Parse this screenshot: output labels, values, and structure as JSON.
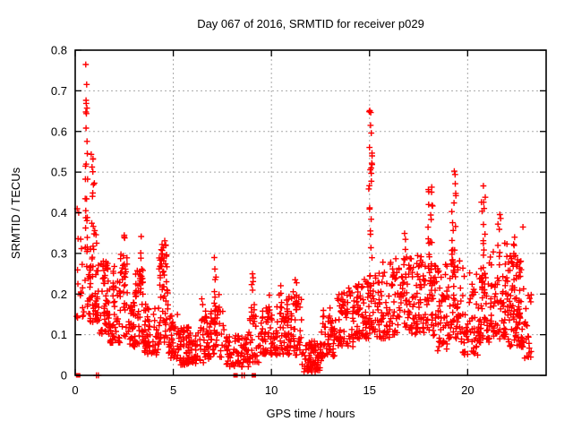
{
  "chart_data": {
    "type": "scatter",
    "title": "Day 067 of 2016, SRMTID for receiver p029",
    "xlabel": "GPS time / hours",
    "ylabel": "SRMTID / TECUs",
    "xlim": [
      0,
      24
    ],
    "ylim": [
      0,
      0.8
    ],
    "xticks": [
      0,
      5,
      10,
      15,
      20
    ],
    "yticks": [
      0,
      0.1,
      0.2,
      0.3,
      0.4,
      0.5,
      0.6,
      0.7,
      0.8
    ],
    "grid": true,
    "legend_position": "none",
    "marker": "plus",
    "marker_color": "#ff0000",
    "marker_size_px": 7,
    "grid_color": "#a8a8a8",
    "border_color": "#000000",
    "text_color": "#000000",
    "seed": 20160670,
    "bands": [
      [
        0.05,
        0.45,
        0.14,
        0.36,
        16,
        1.3
      ],
      [
        0.45,
        0.75,
        0.15,
        0.32,
        16,
        1.2
      ],
      [
        0.7,
        1.25,
        0.13,
        0.38,
        55,
        1.5
      ],
      [
        1.25,
        1.75,
        0.1,
        0.3,
        46,
        1.6
      ],
      [
        1.75,
        2.3,
        0.08,
        0.24,
        48,
        1.5
      ],
      [
        2.3,
        2.65,
        0.09,
        0.3,
        26,
        1.2
      ],
      [
        2.65,
        3.05,
        0.07,
        0.21,
        36,
        1.5
      ],
      [
        3.05,
        3.5,
        0.07,
        0.27,
        40,
        1.3
      ],
      [
        3.5,
        4.25,
        0.05,
        0.18,
        58,
        1.5
      ],
      [
        4.25,
        4.75,
        0.07,
        0.3,
        52,
        1.1
      ],
      [
        4.75,
        5.25,
        0.04,
        0.15,
        38,
        1.4
      ],
      [
        5.25,
        6.55,
        0.025,
        0.12,
        92,
        1.4
      ],
      [
        6.55,
        7.05,
        0.04,
        0.16,
        40,
        1.4
      ],
      [
        7.05,
        7.6,
        0.04,
        0.2,
        30,
        1.5
      ],
      [
        7.6,
        8.85,
        0.02,
        0.1,
        72,
        1.3
      ],
      [
        8.85,
        9.5,
        0.03,
        0.15,
        38,
        1.4
      ],
      [
        9.5,
        10.25,
        0.05,
        0.17,
        52,
        1.4
      ],
      [
        10.25,
        11.0,
        0.05,
        0.2,
        55,
        1.4
      ],
      [
        11.0,
        11.55,
        0.05,
        0.22,
        42,
        1.4
      ],
      [
        11.55,
        12.55,
        0.008,
        0.085,
        82,
        1.2
      ],
      [
        12.55,
        13.35,
        0.04,
        0.16,
        52,
        1.4
      ],
      [
        13.35,
        14.25,
        0.07,
        0.21,
        62,
        1.4
      ],
      [
        14.25,
        14.95,
        0.09,
        0.24,
        58,
        1.3
      ],
      [
        14.95,
        15.35,
        0.1,
        0.26,
        28,
        1.3
      ],
      [
        15.35,
        16.25,
        0.09,
        0.28,
        68,
        1.4
      ],
      [
        16.25,
        17.25,
        0.1,
        0.3,
        72,
        1.4
      ],
      [
        17.25,
        17.85,
        0.1,
        0.3,
        52,
        1.4
      ],
      [
        17.85,
        18.45,
        0.09,
        0.3,
        40,
        1.4
      ],
      [
        18.45,
        19.0,
        0.06,
        0.28,
        48,
        1.4
      ],
      [
        19.0,
        19.65,
        0.09,
        0.3,
        44,
        1.4
      ],
      [
        19.65,
        20.55,
        0.05,
        0.28,
        62,
        1.5
      ],
      [
        20.55,
        21.15,
        0.08,
        0.28,
        44,
        1.4
      ],
      [
        21.15,
        22.05,
        0.09,
        0.33,
        80,
        1.5
      ],
      [
        22.05,
        22.75,
        0.07,
        0.3,
        88,
        1.5
      ],
      [
        22.75,
        23.25,
        0.04,
        0.22,
        28,
        1.3
      ]
    ],
    "spikes": [
      [
        0.57,
        0.3,
        0.785,
        22,
        0.06
      ],
      [
        0.9,
        0.36,
        0.545,
        10,
        0.1
      ],
      [
        1.45,
        0.22,
        0.31,
        6,
        0.06
      ],
      [
        1.95,
        0.2,
        0.27,
        5,
        0.06
      ],
      [
        2.45,
        0.22,
        0.345,
        8,
        0.07
      ],
      [
        3.35,
        0.22,
        0.35,
        8,
        0.08
      ],
      [
        4.5,
        0.22,
        0.35,
        14,
        0.12
      ],
      [
        6.45,
        0.13,
        0.2,
        5,
        0.05
      ],
      [
        7.15,
        0.1,
        0.3,
        13,
        0.07
      ],
      [
        9.05,
        0.1,
        0.27,
        11,
        0.08
      ],
      [
        9.85,
        0.14,
        0.21,
        5,
        0.05
      ],
      [
        10.5,
        0.15,
        0.23,
        5,
        0.05
      ],
      [
        10.85,
        0.15,
        0.23,
        5,
        0.05
      ],
      [
        11.25,
        0.16,
        0.25,
        6,
        0.05
      ],
      [
        13.0,
        0.12,
        0.18,
        4,
        0.05
      ],
      [
        13.9,
        0.15,
        0.24,
        5,
        0.05
      ],
      [
        15.05,
        0.2,
        0.655,
        26,
        0.09
      ],
      [
        16.85,
        0.24,
        0.35,
        6,
        0.07
      ],
      [
        18.1,
        0.18,
        0.5,
        22,
        0.12
      ],
      [
        19.3,
        0.18,
        0.53,
        26,
        0.12
      ],
      [
        20.8,
        0.16,
        0.47,
        22,
        0.12
      ],
      [
        21.6,
        0.28,
        0.41,
        5,
        0.08
      ],
      [
        22.4,
        0.25,
        0.34,
        6,
        0.1
      ]
    ],
    "outliers": [
      [
        22.82,
        0.365
      ],
      [
        0.1,
        0.41
      ],
      [
        0.18,
        0.4
      ],
      [
        0.28,
        0.335
      ]
    ],
    "notable_maxima": [
      [
        0.57,
        0.785
      ],
      [
        15.05,
        0.648
      ],
      [
        19.3,
        0.53
      ],
      [
        0.9,
        0.545
      ],
      [
        18.1,
        0.5
      ],
      [
        20.8,
        0.47
      ],
      [
        22.82,
        0.365
      ]
    ],
    "zero_squares": [
      0.15,
      8.17,
      9.1
    ],
    "zero_plus": [
      1.08,
      1.18,
      8.5,
      8.62
    ]
  }
}
